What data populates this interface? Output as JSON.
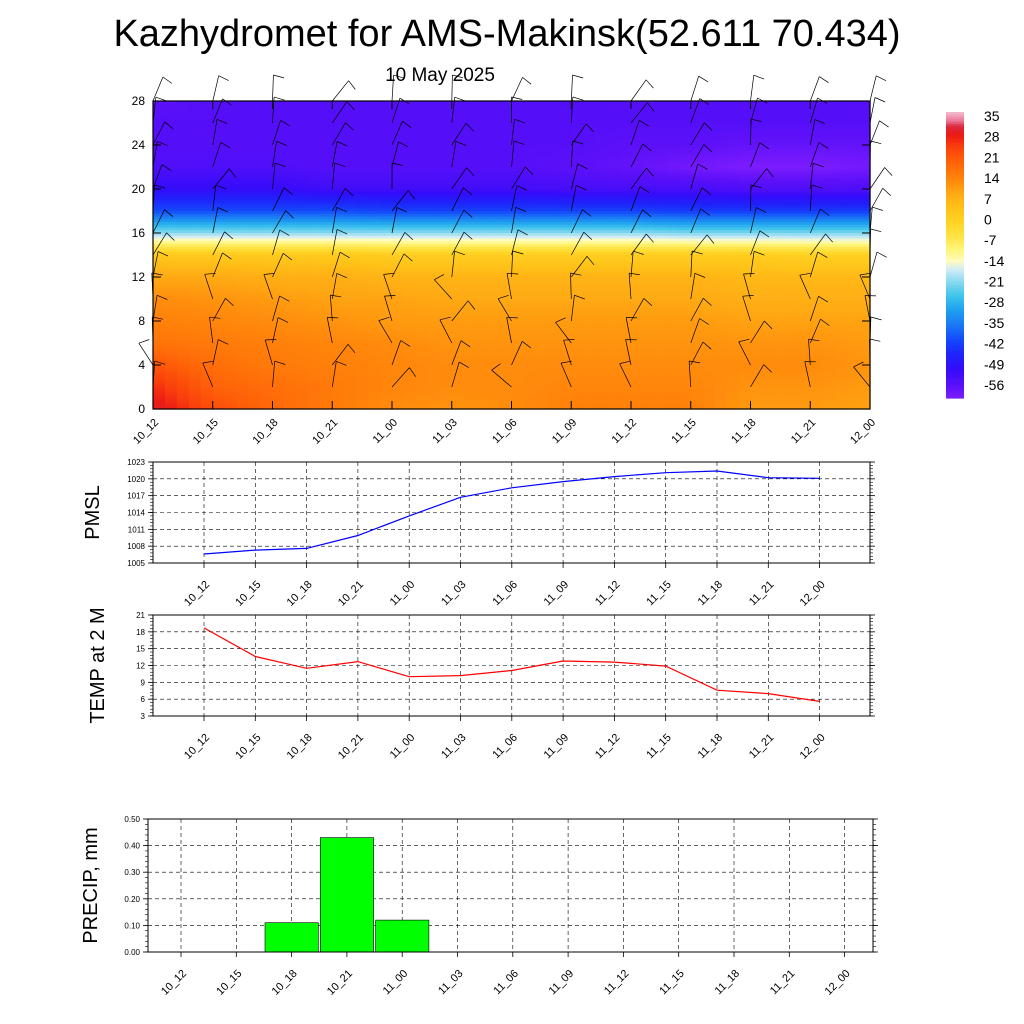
{
  "title": "Kazhydromet for AMS-Makinsk(52.611 70.434)",
  "subtitle": "10 May 2025",
  "colors": {
    "pmsl_line": "#0000ff",
    "temp_line": "#ff0000",
    "precip_bar": "#00ff00",
    "grid": "#000000",
    "barb": "#000000"
  },
  "chart_data": [
    {
      "type": "heatmap",
      "title": "",
      "xlabel": "",
      "ylabel": "",
      "x": [
        "10_12",
        "10_15",
        "10_18",
        "10_21",
        "11_00",
        "11_03",
        "11_06",
        "11_09",
        "11_12",
        "11_15",
        "11_18",
        "11_21",
        "12_00"
      ],
      "ylim": [
        0,
        28
      ],
      "yticks": [
        "0",
        "4",
        "8",
        "12",
        "16",
        "20",
        "24",
        "28"
      ],
      "levels": [
        0,
        2,
        4,
        6,
        8,
        10,
        12,
        14,
        16,
        18,
        20,
        22,
        24,
        26,
        28
      ],
      "temperature": [
        [
          32,
          28,
          23,
          18,
          16,
          14,
          10,
          3,
          -20,
          -40,
          -50,
          -54,
          -55,
          -55,
          -56
        ],
        [
          24,
          21,
          19,
          17,
          15,
          13,
          10,
          3,
          -20,
          -40,
          -50,
          -54,
          -55,
          -55,
          -55
        ],
        [
          20,
          19,
          17,
          16,
          14,
          12,
          9,
          3,
          -20,
          -40,
          -50,
          -54,
          -55,
          -55,
          -55
        ],
        [
          17,
          17,
          16,
          15,
          13,
          11,
          9,
          3,
          -20,
          -40,
          -52,
          -55,
          -55,
          -55,
          -55
        ],
        [
          14,
          15,
          15,
          14,
          12,
          11,
          8,
          2,
          -20,
          -41,
          -52,
          -55,
          -55,
          -55,
          -55
        ],
        [
          13,
          14,
          14,
          13,
          12,
          10,
          8,
          2,
          -20,
          -41,
          -52,
          -55,
          -55,
          -55,
          -55
        ],
        [
          14,
          14,
          14,
          13,
          12,
          10,
          8,
          2,
          -20,
          -41,
          -52,
          -55,
          -55,
          -55,
          -55
        ],
        [
          16,
          15,
          14,
          13,
          12,
          10,
          8,
          2,
          -20,
          -41,
          -53,
          -56,
          -55,
          -55,
          -55
        ],
        [
          16,
          15,
          14,
          13,
          12,
          10,
          8,
          2,
          -20,
          -41,
          -53,
          -57,
          -56,
          -55,
          -55
        ],
        [
          16,
          15,
          14,
          13,
          12,
          10,
          8,
          2,
          -21,
          -42,
          -53,
          -59,
          -56,
          -55,
          -55
        ],
        [
          12,
          13,
          14,
          13,
          11,
          9,
          7,
          2,
          -21,
          -42,
          -54,
          -60,
          -57,
          -55,
          -55
        ],
        [
          12,
          13,
          14,
          13,
          11,
          9,
          7,
          1,
          -21,
          -42,
          -54,
          -60,
          -57,
          -55,
          -55
        ],
        [
          11,
          12,
          13,
          12,
          11,
          9,
          7,
          1,
          -21,
          -42,
          -54,
          -59,
          -57,
          -55,
          -55
        ]
      ],
      "colorbar": {
        "labels": [
          "35",
          "28",
          "21",
          "14",
          "7",
          "0",
          "-7",
          "-14",
          "-21",
          "-28",
          "-35",
          "-42",
          "-49",
          "-56"
        ],
        "values": [
          35,
          28,
          21,
          14,
          7,
          0,
          -7,
          -14,
          -21,
          -28,
          -35,
          -42,
          -49,
          -56
        ]
      }
    },
    {
      "type": "line",
      "ylabel": "PMSL",
      "x": [
        "10_12",
        "10_15",
        "10_18",
        "10_21",
        "11_00",
        "11_03",
        "11_06",
        "11_09",
        "11_12",
        "11_15",
        "11_18",
        "11_21",
        "12_00"
      ],
      "ylim": [
        1005,
        1023
      ],
      "yticks": [
        "1005",
        "1008",
        "1011",
        "1014",
        "1017",
        "1020",
        "1023"
      ],
      "series": [
        {
          "values": [
            1006.6,
            1007.3,
            1007.6,
            1009.9,
            1013.4,
            1016.7,
            1018.4,
            1019.5,
            1020.4,
            1021.1,
            1021.4,
            1020.2,
            1020.1
          ]
        }
      ],
      "grid": true
    },
    {
      "type": "line",
      "ylabel": "TEMP at 2 M",
      "x": [
        "10_12",
        "10_15",
        "10_18",
        "10_21",
        "11_00",
        "11_03",
        "11_06",
        "11_09",
        "11_12",
        "11_15",
        "11_18",
        "11_21",
        "12_00"
      ],
      "ylim": [
        3,
        21
      ],
      "yticks": [
        "3",
        "6",
        "9",
        "12",
        "15",
        "18",
        "21"
      ],
      "series": [
        {
          "values": [
            18.7,
            13.6,
            11.5,
            12.7,
            10.0,
            10.2,
            11.1,
            12.8,
            12.6,
            11.9,
            7.6,
            7.0,
            5.6
          ]
        }
      ],
      "grid": true
    },
    {
      "type": "bar",
      "ylabel": "PRECIP, mm",
      "categories": [
        "10_12",
        "10_15",
        "10_18",
        "10_21",
        "11_00",
        "11_03",
        "11_06",
        "11_09",
        "11_12",
        "11_15",
        "11_18",
        "11_21",
        "12_00"
      ],
      "values": [
        0,
        0,
        0.11,
        0.43,
        0.12,
        0,
        0,
        0,
        0,
        0,
        0,
        0,
        0
      ],
      "ylim": [
        0,
        0.5
      ],
      "yticks": [
        "0.00",
        "0.10",
        "0.20",
        "0.30",
        "0.40",
        "0.50"
      ],
      "grid": true
    }
  ]
}
